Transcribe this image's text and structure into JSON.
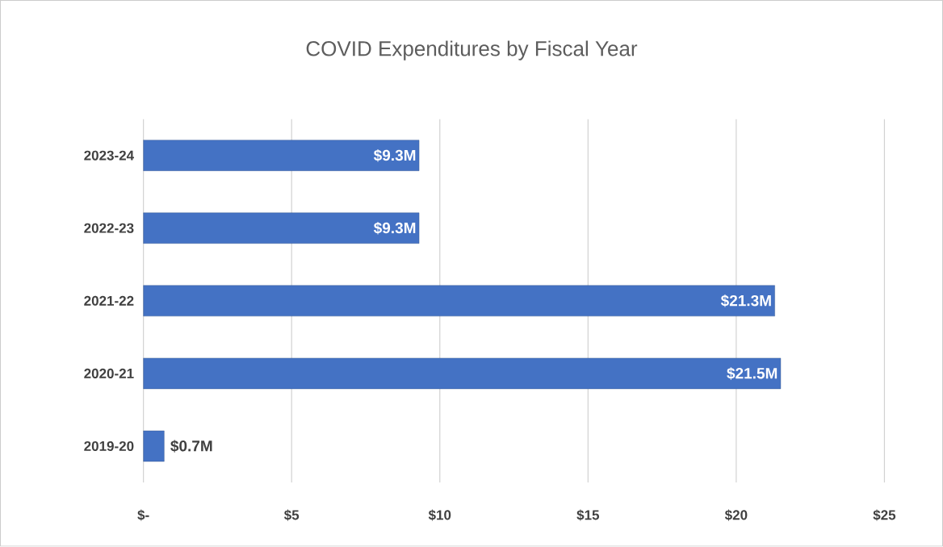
{
  "chart_data": {
    "type": "bar",
    "orientation": "horizontal",
    "title": "COVID Expenditures by Fiscal Year",
    "categories": [
      "2023-24",
      "2022-23",
      "2021-22",
      "2020-21",
      "2019-20"
    ],
    "values": [
      9.3,
      9.3,
      21.3,
      21.5,
      0.7
    ],
    "value_labels": [
      "$9.3M",
      "$9.3M",
      "$21.3M",
      "$21.5M",
      "$0.7M"
    ],
    "color": "#4472c4",
    "xlim": [
      0,
      25
    ],
    "xticks": [
      {
        "value": 0,
        "label": "$-"
      },
      {
        "value": 5,
        "label": "$5"
      },
      {
        "value": 10,
        "label": "$10"
      },
      {
        "value": 15,
        "label": "$15"
      },
      {
        "value": 20,
        "label": "$20"
      },
      {
        "value": 25,
        "label": "$25"
      }
    ],
    "grid": "x"
  }
}
